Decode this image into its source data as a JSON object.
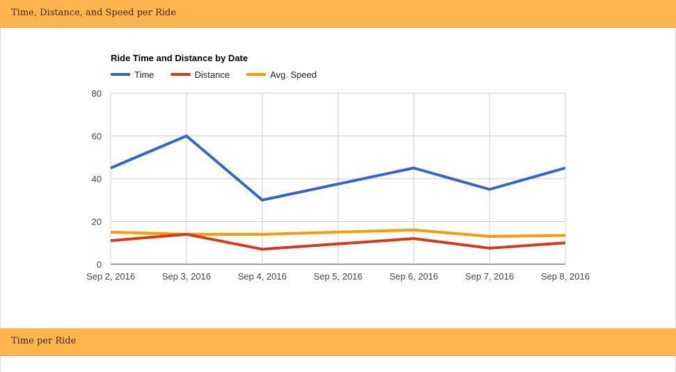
{
  "panels": [
    {
      "title": "Time, Distance, and Speed per Ride"
    },
    {
      "title": "Time per Ride"
    }
  ],
  "chart_data": {
    "type": "line",
    "title": "Ride Time and Distance by Date",
    "categories": [
      "Sep 2, 2016",
      "Sep 3, 2016",
      "Sep 4, 2016",
      "Sep 5, 2016",
      "Sep 6, 2016",
      "Sep 7, 2016",
      "Sep 8, 2016"
    ],
    "series": [
      {
        "name": "Time",
        "color": "#3366cc",
        "values": [
          45,
          60,
          30,
          37.5,
          45,
          35,
          45
        ]
      },
      {
        "name": "Distance",
        "color": "#dc3912",
        "values": [
          11,
          14,
          7,
          9.5,
          12,
          7.5,
          10
        ]
      },
      {
        "name": "Avg. Speed",
        "color": "#ff9900",
        "values": [
          15,
          14,
          14,
          15,
          16,
          13,
          13.5
        ]
      }
    ],
    "ylim": [
      0,
      80
    ],
    "yticks": [
      0,
      20,
      40,
      60,
      80
    ],
    "grid": true,
    "legend_position": "top"
  }
}
